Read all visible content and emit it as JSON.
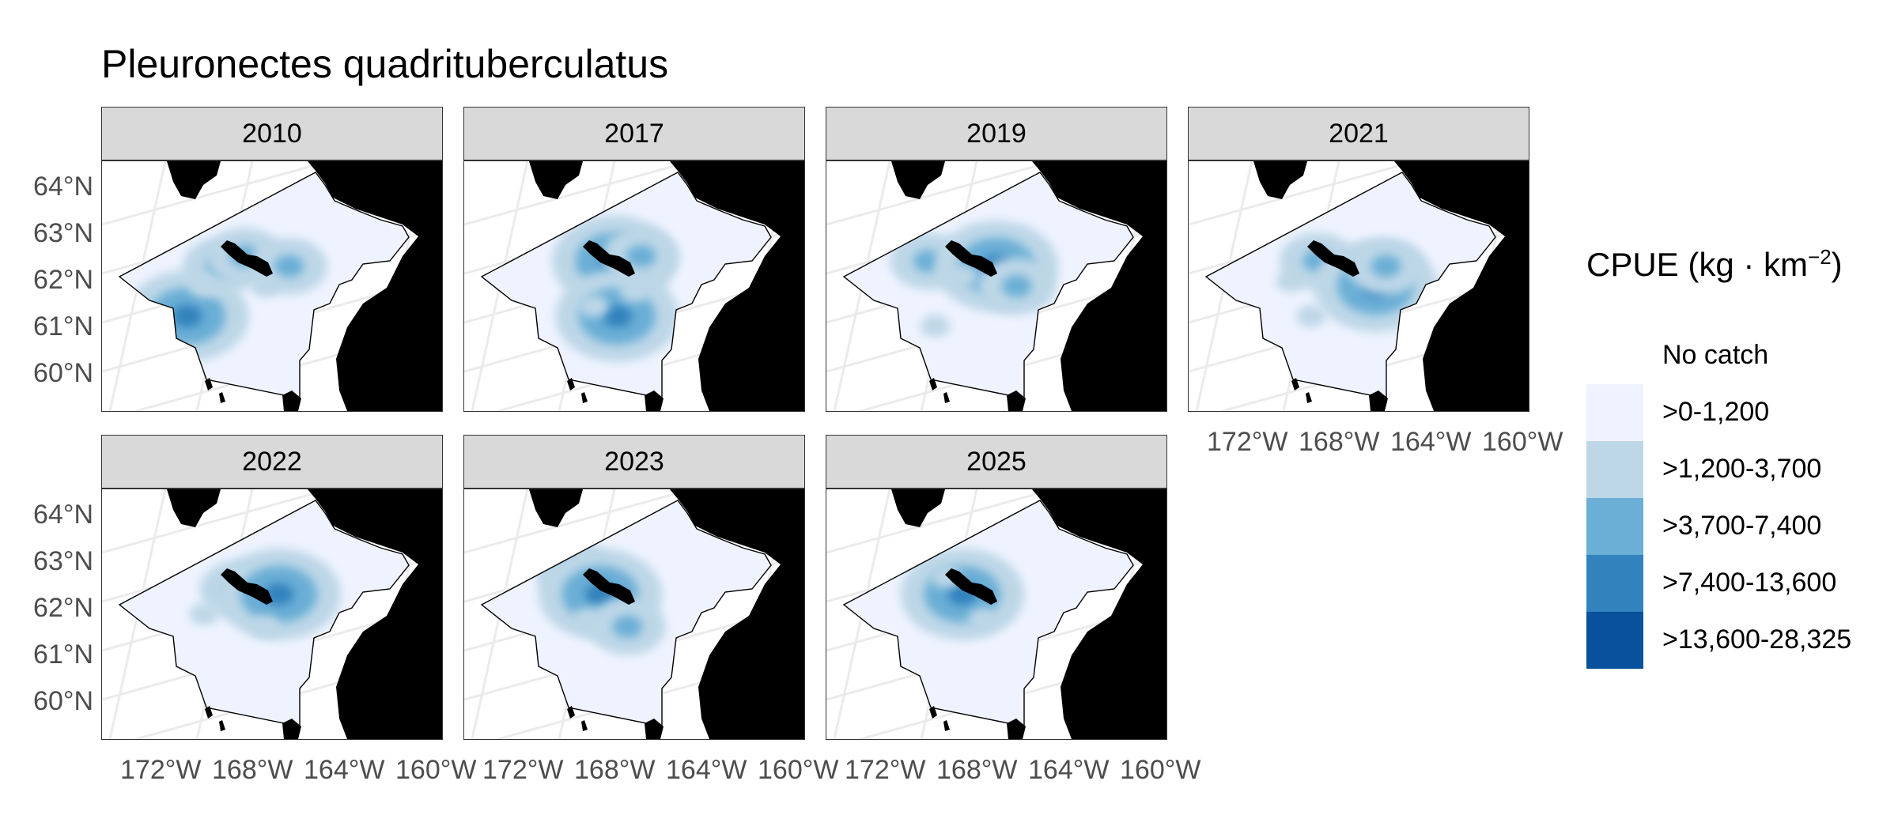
{
  "title": "Pleuronectes quadrituberculatus",
  "facets": [
    {
      "label": "2010",
      "hotspots": [
        [
          0.25,
          0.62,
          4
        ],
        [
          0.35,
          0.42,
          3
        ],
        [
          0.42,
          0.38,
          3
        ],
        [
          0.55,
          0.42,
          3
        ],
        [
          0.3,
          0.5,
          2
        ],
        [
          0.48,
          0.5,
          2
        ]
      ]
    },
    {
      "label": "2017",
      "hotspots": [
        [
          0.44,
          0.4,
          4
        ],
        [
          0.45,
          0.62,
          4
        ],
        [
          0.52,
          0.38,
          3
        ],
        [
          0.5,
          0.52,
          2
        ],
        [
          0.38,
          0.58,
          2
        ],
        [
          0.6,
          0.3,
          1
        ]
      ]
    },
    {
      "label": "2019",
      "hotspots": [
        [
          0.3,
          0.4,
          3
        ],
        [
          0.5,
          0.42,
          4
        ],
        [
          0.56,
          0.5,
          3
        ],
        [
          0.4,
          0.46,
          2
        ],
        [
          0.32,
          0.66,
          2
        ],
        [
          0.58,
          0.25,
          1
        ]
      ]
    },
    {
      "label": "2021",
      "hotspots": [
        [
          0.38,
          0.4,
          3
        ],
        [
          0.55,
          0.5,
          4
        ],
        [
          0.58,
          0.42,
          3
        ],
        [
          0.36,
          0.62,
          2
        ],
        [
          0.3,
          0.48,
          2
        ],
        [
          0.52,
          0.28,
          1
        ]
      ]
    },
    {
      "label": "2022",
      "hotspots": [
        [
          0.4,
          0.4,
          3
        ],
        [
          0.52,
          0.42,
          4
        ],
        [
          0.48,
          0.55,
          2
        ],
        [
          0.3,
          0.5,
          2
        ],
        [
          0.34,
          0.7,
          1
        ]
      ]
    },
    {
      "label": "2023",
      "hotspots": [
        [
          0.32,
          0.32,
          3
        ],
        [
          0.4,
          0.42,
          4
        ],
        [
          0.48,
          0.55,
          3
        ],
        [
          0.36,
          0.52,
          2
        ],
        [
          0.5,
          0.7,
          1
        ]
      ]
    },
    {
      "label": "2025",
      "hotspots": [
        [
          0.4,
          0.42,
          4
        ],
        [
          0.35,
          0.35,
          2
        ],
        [
          0.46,
          0.52,
          2
        ],
        [
          0.3,
          0.6,
          1
        ],
        [
          0.4,
          0.7,
          1
        ]
      ]
    }
  ],
  "y_axis_labels": [
    "64°N",
    "63°N",
    "62°N",
    "61°N",
    "60°N"
  ],
  "x_axis_labels": [
    "172°W",
    "168°W",
    "164°W",
    "160°W"
  ],
  "legend": {
    "title": "CPUE (kg · km",
    "title_sup": "−2",
    "title_close": ")",
    "items": [
      {
        "label": "No catch",
        "color": "#ffffff"
      },
      {
        "label": ">0-1,200",
        "color": "#eff3ff"
      },
      {
        "label": ">1,200-3,700",
        "color": "#bdd7e7"
      },
      {
        "label": ">3,700-7,400",
        "color": "#6baed6"
      },
      {
        "label": ">7,400-13,600",
        "color": "#3182bd"
      },
      {
        "label": ">13,600-28,325",
        "color": "#08519c"
      }
    ]
  },
  "colors": {
    "land": "#000000",
    "survey_area": "#eff3ff",
    "graticule": "#ebebeb",
    "strip": "#d9d9d9"
  }
}
